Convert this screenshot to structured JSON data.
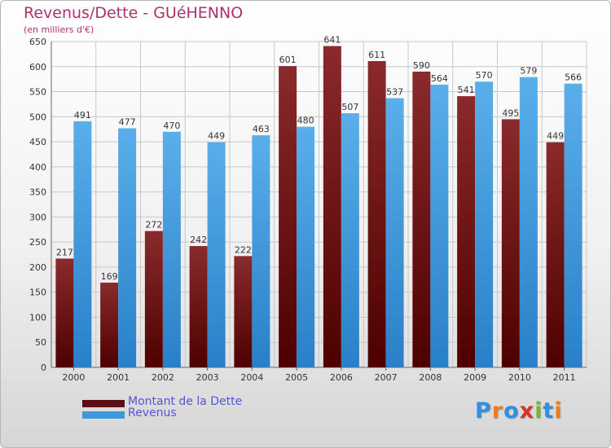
{
  "title": "Revenus/Dette - GUéHENNO",
  "subtitle": "(en milliers d'€)",
  "logo": {
    "text": "Proxiti",
    "letter_colors": [
      "#2f8fe0",
      "#f07a1e",
      "#2f8fe0",
      "#d8342c",
      "#7bb52a",
      "#2f8fe0",
      "#f07a1e"
    ]
  },
  "colors": {
    "dette": "#7a1418",
    "revenus": "#3f98dc",
    "grid": "#c8c8c8",
    "axis_text": "#333333",
    "title": "#b0306a",
    "legend_text": "#5555d0"
  },
  "legend": [
    {
      "label": "Montant de la Dette",
      "color": "#5c0f12"
    },
    {
      "label": "Revenus",
      "color": "#3f98dc"
    }
  ],
  "chart_data": {
    "type": "bar",
    "title": "Revenus/Dette - GUéHENNO",
    "subtitle": "(en milliers d'€)",
    "categories": [
      "2000",
      "2001",
      "2002",
      "2003",
      "2004",
      "2005",
      "2006",
      "2007",
      "2008",
      "2009",
      "2010",
      "2011"
    ],
    "series": [
      {
        "name": "Montant de la Dette",
        "values": [
          217,
          169,
          272,
          242,
          222,
          601,
          641,
          611,
          590,
          541,
          495,
          449
        ]
      },
      {
        "name": "Revenus",
        "values": [
          491,
          477,
          470,
          449,
          463,
          480,
          507,
          537,
          564,
          570,
          579,
          566
        ]
      }
    ],
    "ylim": [
      0,
      650
    ],
    "yticks": [
      0,
      50,
      100,
      150,
      200,
      250,
      300,
      350,
      400,
      450,
      500,
      550,
      600,
      650
    ],
    "grid": true,
    "legend_position": "bottom-left"
  }
}
